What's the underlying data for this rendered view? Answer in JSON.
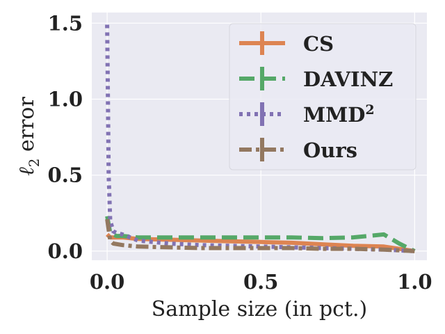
{
  "chart_data": {
    "type": "line",
    "title": "",
    "xlabel": "Sample size (in pct.)",
    "ylabel_italic": "ℓ",
    "ylabel_sub": "2",
    "ylabel_rest": " error",
    "xlim": [
      -0.05,
      1.04
    ],
    "ylim": [
      -0.06,
      1.57
    ],
    "xticks": [
      0.0,
      0.5,
      1.0
    ],
    "xtick_labels": [
      "0.0",
      "0.5",
      "1.0"
    ],
    "yticks": [
      0.0,
      0.5,
      1.0,
      1.5
    ],
    "ytick_labels": [
      "0.0",
      "0.5",
      "1.0",
      "1.5"
    ],
    "grid": true,
    "legend_position": "top-right",
    "series": [
      {
        "name": "CS",
        "legend_main": "CS",
        "legend_sup": "",
        "color": "#dd8452",
        "dash": "solid",
        "x": [
          0.0,
          0.01,
          0.03,
          0.05,
          0.1,
          0.2,
          0.3,
          0.4,
          0.5,
          0.6,
          0.7,
          0.8,
          0.9,
          1.0
        ],
        "y": [
          0.11,
          0.09,
          0.09,
          0.09,
          0.08,
          0.075,
          0.07,
          0.065,
          0.06,
          0.055,
          0.045,
          0.035,
          0.03,
          0.0
        ]
      },
      {
        "name": "DAVINZ",
        "legend_main": "DAVINZ",
        "legend_sup": "",
        "color": "#55a868",
        "dash": "dashed",
        "x": [
          0.0,
          0.01,
          0.03,
          0.05,
          0.1,
          0.2,
          0.3,
          0.4,
          0.5,
          0.6,
          0.7,
          0.8,
          0.9,
          0.95,
          1.0
        ],
        "y": [
          0.23,
          0.12,
          0.1,
          0.1,
          0.09,
          0.09,
          0.09,
          0.09,
          0.09,
          0.09,
          0.085,
          0.09,
          0.11,
          0.05,
          0.0
        ]
      },
      {
        "name": "MMD²",
        "legend_main": "MMD",
        "legend_sup": "2",
        "color": "#8172b3",
        "dash": "dotted",
        "x": [
          0.0,
          0.002,
          0.005,
          0.01,
          0.02,
          0.03,
          0.05,
          0.1,
          0.2,
          0.3,
          0.5,
          0.7,
          0.9,
          1.0
        ],
        "y": [
          1.49,
          1.1,
          0.5,
          0.2,
          0.13,
          0.12,
          0.11,
          0.07,
          0.05,
          0.04,
          0.03,
          0.02,
          0.01,
          0.0
        ]
      },
      {
        "name": "Ours",
        "legend_main": "Ours",
        "legend_sup": "",
        "color": "#937860",
        "dash": "dashdot",
        "x": [
          0.0,
          0.01,
          0.02,
          0.05,
          0.1,
          0.2,
          0.3,
          0.4,
          0.5,
          0.6,
          0.7,
          0.8,
          0.9,
          1.0
        ],
        "y": [
          0.21,
          0.07,
          0.05,
          0.04,
          0.03,
          0.025,
          0.02,
          0.02,
          0.02,
          0.02,
          0.015,
          0.015,
          0.01,
          0.0
        ]
      }
    ]
  }
}
